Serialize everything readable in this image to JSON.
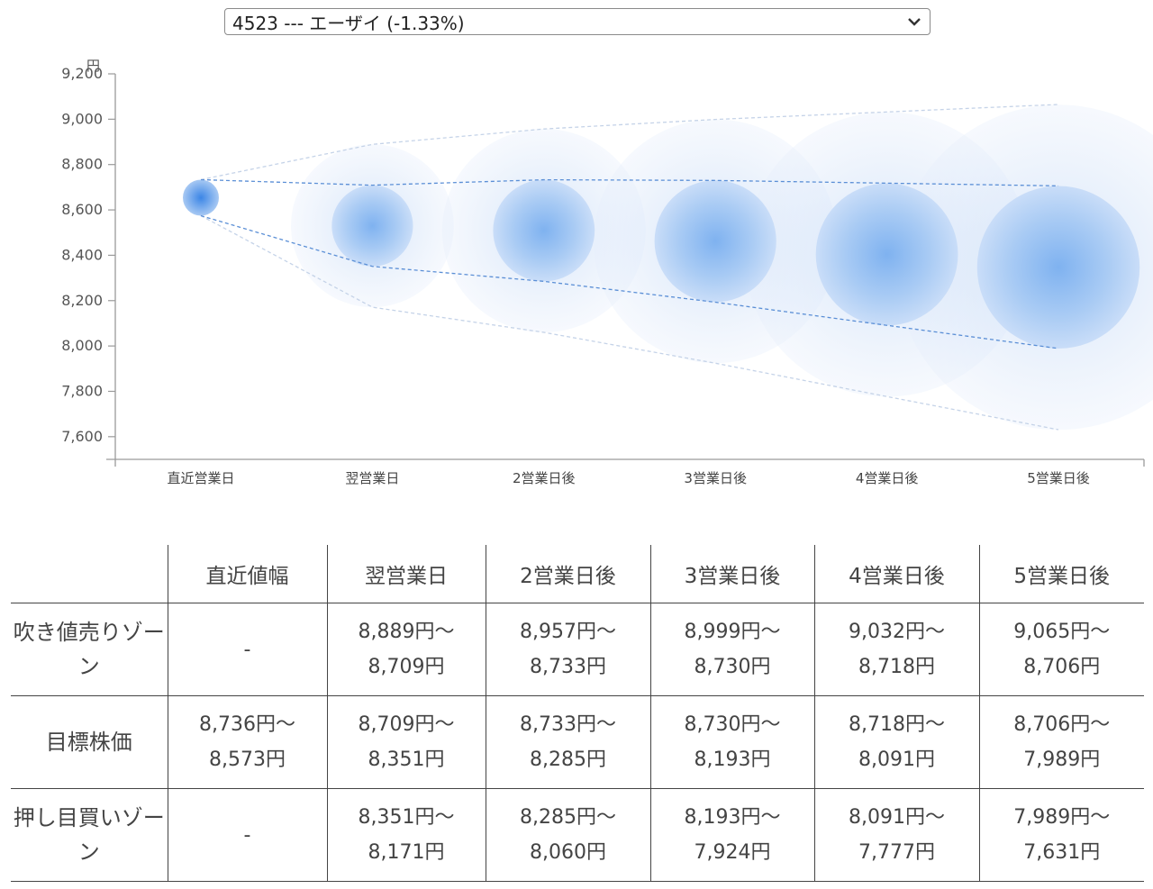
{
  "selector": {
    "value": "4523 --- エーザイ (-1.33%)",
    "icon": "chevron-down-icon"
  },
  "chart_data": {
    "type": "scatter",
    "ylabel": "円",
    "ylim": [
      7500,
      9200
    ],
    "yticks": [
      7600,
      7800,
      8000,
      8200,
      8400,
      8600,
      8800,
      9000,
      9200
    ],
    "ytick_labels": [
      "7,600",
      "7,800",
      "8,000",
      "8,200",
      "8,400",
      "8,600",
      "8,800",
      "9,000",
      "9,200"
    ],
    "categories": [
      "直近営業日",
      "翌営業日",
      "2営業日後",
      "3営業日後",
      "4営業日後",
      "5営業日後"
    ],
    "series": [
      {
        "values": [
          8654,
          8530,
          8509,
          8462,
          8404,
          8347
        ]
      }
    ],
    "bands": {
      "target_high": [
        8736,
        8709,
        8733,
        8730,
        8718,
        8706
      ],
      "target_low": [
        8573,
        8351,
        8285,
        8193,
        8091,
        7989
      ],
      "outer_high": [
        8736,
        8889,
        8957,
        8999,
        9032,
        9065
      ],
      "outer_low": [
        8573,
        8171,
        8060,
        7924,
        7777,
        7631
      ]
    },
    "colors": {
      "bubble": "#4a90e2",
      "line": "#5b8fd6",
      "outer_line": "#c5d3e8",
      "axis": "#9a9a9a"
    }
  },
  "table": {
    "headers": [
      "",
      "直近値幅",
      "翌営業日",
      "2営業日後",
      "3営業日後",
      "4営業日後",
      "5営業日後"
    ],
    "rows": [
      {
        "label": "吹き値売りゾーン",
        "cells": [
          {
            "top": "-",
            "bottom": ""
          },
          {
            "top": "8,889円〜",
            "bottom": "8,709円"
          },
          {
            "top": "8,957円〜",
            "bottom": "8,733円"
          },
          {
            "top": "8,999円〜",
            "bottom": "8,730円"
          },
          {
            "top": "9,032円〜",
            "bottom": "8,718円"
          },
          {
            "top": "9,065円〜",
            "bottom": "8,706円"
          }
        ]
      },
      {
        "label": "目標株価",
        "cells": [
          {
            "top": "8,736円〜",
            "bottom": "8,573円"
          },
          {
            "top": "8,709円〜",
            "bottom": "8,351円"
          },
          {
            "top": "8,733円〜",
            "bottom": "8,285円"
          },
          {
            "top": "8,730円〜",
            "bottom": "8,193円"
          },
          {
            "top": "8,718円〜",
            "bottom": "8,091円"
          },
          {
            "top": "8,706円〜",
            "bottom": "7,989円"
          }
        ]
      },
      {
        "label": "押し目買いゾーン",
        "cells": [
          {
            "top": "-",
            "bottom": ""
          },
          {
            "top": "8,351円〜",
            "bottom": "8,171円"
          },
          {
            "top": "8,285円〜",
            "bottom": "8,060円"
          },
          {
            "top": "8,193円〜",
            "bottom": "7,924円"
          },
          {
            "top": "8,091円〜",
            "bottom": "7,777円"
          },
          {
            "top": "7,989円〜",
            "bottom": "7,631円"
          }
        ]
      }
    ]
  }
}
